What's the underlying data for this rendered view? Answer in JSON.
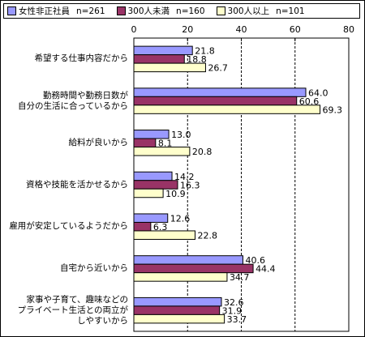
{
  "chart_data": {
    "type": "bar",
    "orientation": "horizontal",
    "categories": [
      "希望する仕事内容だから",
      "勤務時間や勤務日数が\n自分の生活に合っているから",
      "給料が良いから",
      "資格や技能を活かせるから",
      "雇用が安定しているようだから",
      "自宅から近いから",
      "家事や子育て、趣味などの\nプライベート生活との両立が\nしやすいから"
    ],
    "series": [
      {
        "name": "女性非正社員",
        "n": "n=261",
        "color": "#9999ff",
        "values": [
          21.8,
          64.0,
          13.0,
          14.2,
          12.6,
          40.6,
          32.6
        ],
        "labels": [
          "21.8",
          "64.0",
          "13.0",
          "14.2",
          "12.6",
          "40.6",
          "32.6"
        ]
      },
      {
        "name": "300人未満",
        "n": "n=160",
        "color": "#993366",
        "values": [
          18.8,
          60.6,
          8.1,
          16.3,
          6.3,
          44.4,
          31.9
        ],
        "labels": [
          "18.8",
          "60.6",
          "8.1",
          "16.3",
          "6.3",
          "44.4",
          "31.9"
        ]
      },
      {
        "name": "300人以上",
        "n": "n=101",
        "color": "#ffffcc",
        "values": [
          26.7,
          69.3,
          20.8,
          10.9,
          22.8,
          34.7,
          33.7
        ],
        "labels": [
          "26.7",
          "69.3",
          "20.8",
          "10.9",
          "22.8",
          "34.7",
          "33.7"
        ]
      }
    ],
    "xlim": [
      0,
      80
    ],
    "xticks": [
      "0",
      "20",
      "40",
      "60",
      "80"
    ],
    "grid": "dashed vertical",
    "legend": "top"
  }
}
